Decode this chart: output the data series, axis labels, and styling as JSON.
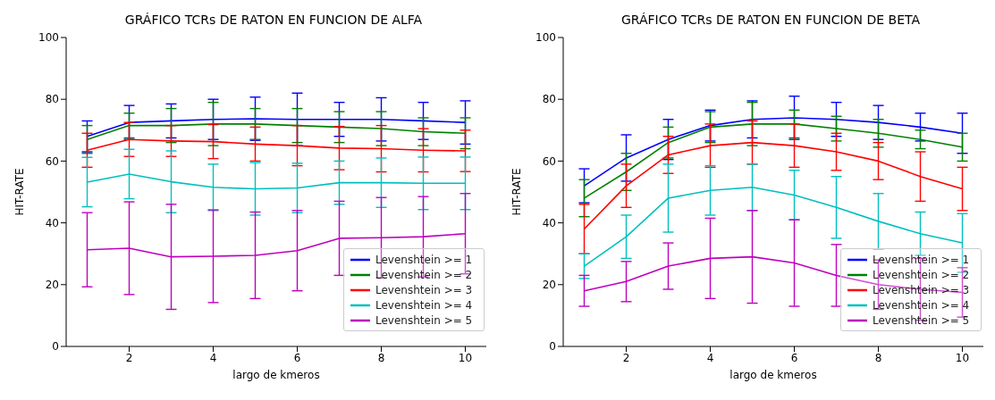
{
  "chart_data": [
    {
      "type": "line",
      "title": "GRÁFICO TCRs DE RATON EN FUNCION DE ALFA",
      "xlabel": "largo de kmeros",
      "ylabel": "HIT-RATE",
      "x": [
        1,
        2,
        3,
        4,
        5,
        6,
        7,
        8,
        9,
        10
      ],
      "xlim": [
        0.5,
        10.5
      ],
      "xticks": [
        2,
        4,
        6,
        8,
        10
      ],
      "ylim": [
        0,
        100
      ],
      "yticks": [
        0,
        20,
        40,
        60,
        80,
        100
      ],
      "grid": false,
      "legend": "bottom right",
      "marker": "none",
      "series": [
        {
          "name": "Levenshtein >= 1",
          "color": "#0000ff",
          "values": [
            68,
            72.5,
            73,
            73.5,
            73.7,
            73.5,
            73.5,
            73.5,
            73,
            72.5
          ],
          "errors": [
            5,
            5.5,
            5.5,
            6.5,
            7,
            8.5,
            5.5,
            7,
            6,
            7
          ]
        },
        {
          "name": "Levenshtein >= 2",
          "color": "#008000",
          "values": [
            67,
            71.5,
            71.5,
            72,
            72,
            71.5,
            71,
            70.5,
            69.5,
            69
          ],
          "errors": [
            4.5,
            4,
            5.5,
            7,
            5,
            5.5,
            5,
            5.5,
            4.5,
            5
          ]
        },
        {
          "name": "Levenshtein >= 3",
          "color": "#ff0000",
          "values": [
            63.5,
            67,
            66.5,
            66.3,
            65.5,
            65,
            64.2,
            64,
            63.5,
            63.3
          ],
          "errors": [
            5.5,
            5.5,
            5,
            5.5,
            5.5,
            6.5,
            7,
            7.5,
            7,
            6.7
          ]
        },
        {
          "name": "Levenshtein >= 4",
          "color": "#00bfbf",
          "values": [
            53.2,
            55.8,
            53.3,
            51.5,
            51,
            51.3,
            53,
            53,
            52.8,
            52.8
          ],
          "errors": [
            8,
            8,
            10,
            7.5,
            8.5,
            8,
            7,
            8,
            8.5,
            8.5
          ]
        },
        {
          "name": "Levenshtein >= 5",
          "color": "#bf00bf",
          "values": [
            31.3,
            31.8,
            29,
            29.2,
            29.5,
            31,
            35,
            35.2,
            35.5,
            36.5
          ],
          "errors": [
            12,
            15,
            17,
            15,
            14,
            13,
            12,
            13,
            13,
            13
          ]
        }
      ]
    },
    {
      "type": "line",
      "title": "GRÁFICO TCRs DE RATON EN FUNCION DE BETA",
      "xlabel": "largo de kmeros",
      "ylabel": "HIT-RATE",
      "x": [
        1,
        2,
        3,
        4,
        5,
        6,
        7,
        8,
        9,
        10
      ],
      "xlim": [
        0.5,
        10.5
      ],
      "xticks": [
        2,
        4,
        6,
        8,
        10
      ],
      "ylim": [
        0,
        100
      ],
      "yticks": [
        0,
        20,
        40,
        60,
        80,
        100
      ],
      "grid": false,
      "legend": "bottom right",
      "marker": "none",
      "series": [
        {
          "name": "Levenshtein >= 1",
          "color": "#0000ff",
          "values": [
            52,
            61,
            67,
            71.5,
            73.5,
            74,
            73.5,
            72.5,
            71,
            69
          ],
          "errors": [
            5.5,
            7.5,
            6.5,
            5,
            6,
            7,
            5.5,
            5.5,
            4.5,
            6.5
          ]
        },
        {
          "name": "Levenshtein >= 2",
          "color": "#008000",
          "values": [
            48,
            56.5,
            66,
            71,
            72,
            72,
            70.5,
            69,
            67,
            64.5
          ],
          "errors": [
            6,
            6,
            5,
            5,
            7,
            4.5,
            4,
            4.5,
            3,
            4.5
          ]
        },
        {
          "name": "Levenshtein >= 3",
          "color": "#ff0000",
          "values": [
            38,
            52,
            62,
            65,
            66,
            65,
            63,
            60,
            55,
            51
          ],
          "errors": [
            8,
            7,
            6,
            7,
            7,
            7,
            6,
            6,
            8,
            7
          ]
        },
        {
          "name": "Levenshtein >= 4",
          "color": "#00bfbf",
          "values": [
            26,
            35.5,
            48,
            50.5,
            51.5,
            49,
            45,
            40.5,
            36.5,
            33.5
          ],
          "errors": [
            4,
            7,
            11,
            8,
            7.5,
            8,
            10,
            9,
            7,
            9.5
          ]
        },
        {
          "name": "Levenshtein >= 5",
          "color": "#bf00bf",
          "values": [
            18,
            21,
            26,
            28.5,
            29,
            27,
            23,
            20,
            18.5,
            17.5
          ],
          "errors": [
            5,
            6.5,
            7.5,
            13,
            15,
            14,
            10,
            8,
            10,
            8
          ]
        }
      ]
    }
  ]
}
